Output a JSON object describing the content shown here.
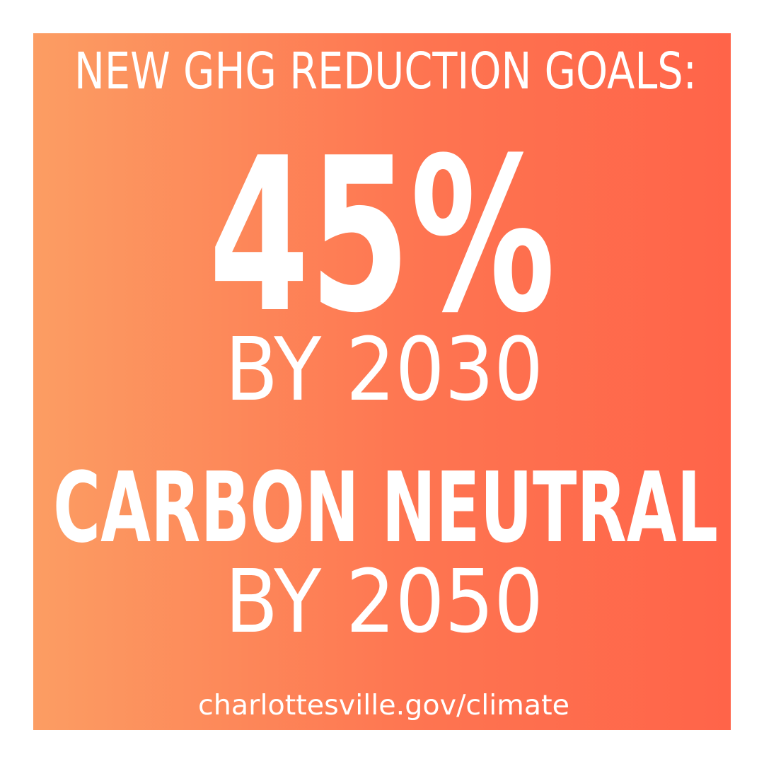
{
  "header": {
    "title": "NEW GHG REDUCTION GOALS:"
  },
  "goals": [
    {
      "headline": "45%",
      "deadline": "BY 2030"
    },
    {
      "headline": "CARBON NEUTRAL",
      "deadline": "BY 2050"
    }
  ],
  "footer": {
    "url": "charlottesville.gov/climate"
  }
}
